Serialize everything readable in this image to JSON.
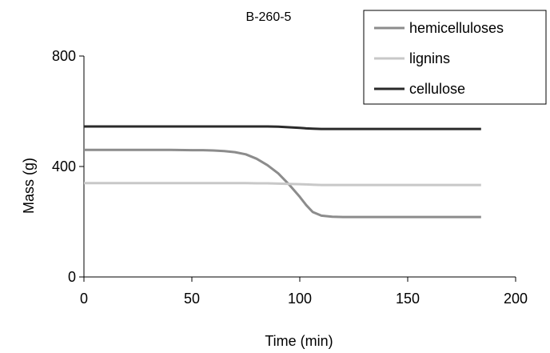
{
  "chart_data": {
    "type": "line",
    "title": "B-260-5",
    "xlabel": "Time (min)",
    "ylabel": "Mass (g)",
    "xlim": [
      0,
      200
    ],
    "ylim": [
      0,
      800
    ],
    "xticks": [
      0,
      50,
      100,
      150,
      200
    ],
    "yticks": [
      0,
      400,
      800
    ],
    "grid": false,
    "legend_position": "top-right",
    "x": [
      0,
      10,
      20,
      30,
      40,
      50,
      55,
      60,
      65,
      70,
      75,
      80,
      85,
      90,
      95,
      100,
      103,
      106,
      110,
      115,
      120,
      125,
      130,
      140,
      150,
      160,
      170,
      184
    ],
    "series": [
      {
        "name": "hemicelluloses",
        "color": "#8c8c8c",
        "values": [
          460,
          460,
          460,
          460,
          460,
          459,
          459,
          458,
          456,
          452,
          444,
          428,
          405,
          375,
          335,
          290,
          260,
          235,
          222,
          218,
          217,
          217,
          217,
          217,
          217,
          217,
          217,
          217
        ]
      },
      {
        "name": "lignins",
        "color": "#c8c8c8",
        "values": [
          340,
          340,
          340,
          340,
          340,
          340,
          340,
          340,
          340,
          340,
          340,
          339,
          339,
          338,
          337,
          336,
          335,
          334,
          333,
          333,
          333,
          333,
          333,
          333,
          333,
          333,
          333,
          333
        ]
      },
      {
        "name": "cellulose",
        "color": "#2a2a2a",
        "values": [
          545,
          545,
          545,
          545,
          545,
          545,
          545,
          545,
          545,
          545,
          545,
          545,
          545,
          544,
          542,
          540,
          538,
          537,
          536,
          536,
          536,
          536,
          536,
          536,
          536,
          536,
          536,
          536
        ]
      }
    ]
  }
}
